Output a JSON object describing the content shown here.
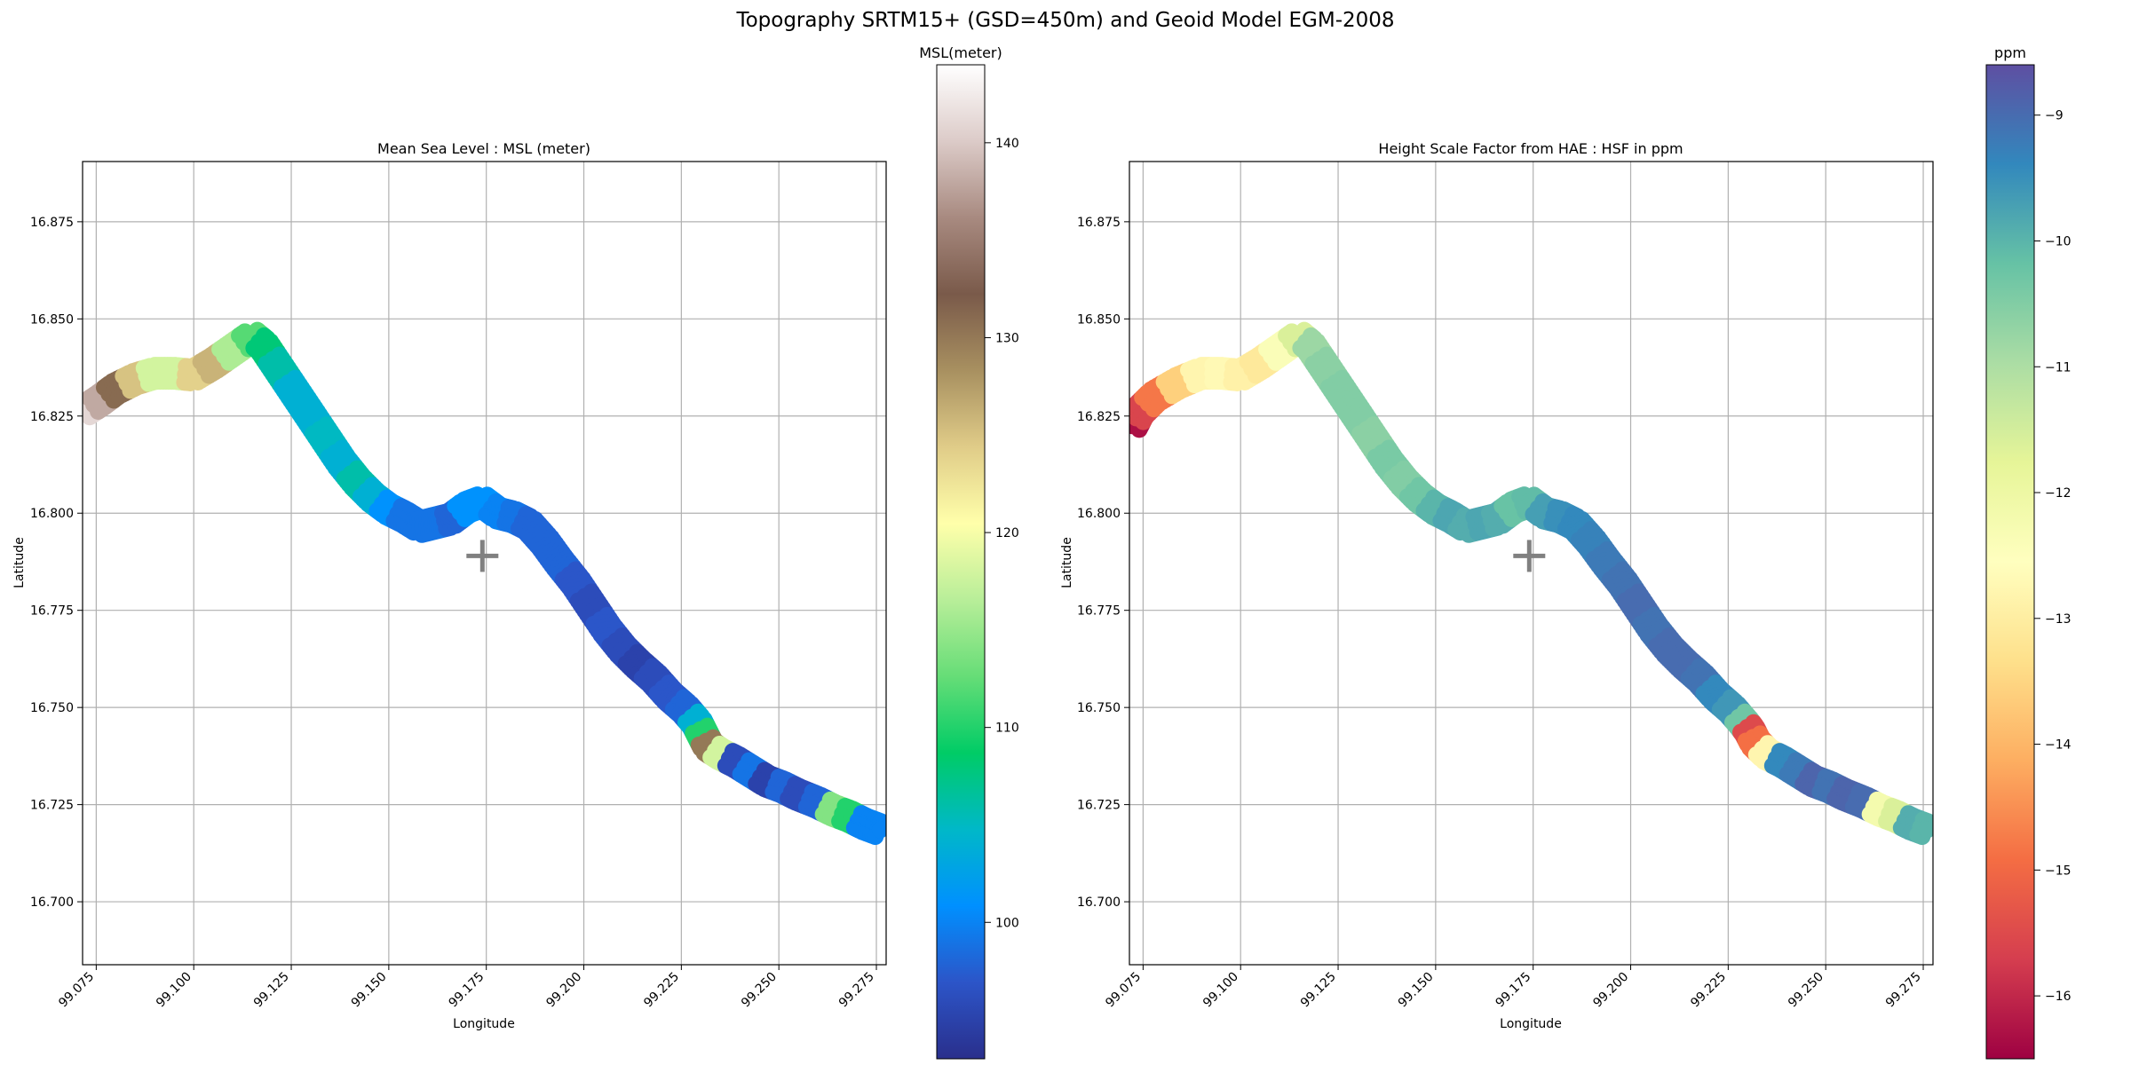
{
  "figure": {
    "suptitle": "Topography SRTM15+ (GSD=450m) and Geoid Model EGM-2008"
  },
  "colors": {
    "grid": "#b0b0b0",
    "marker": "#808080",
    "msl_cmap": [
      "#2a2f8c",
      "#2c55c8",
      "#0090ff",
      "#00b8c8",
      "#00cc66",
      "#66dd77",
      "#b8ee99",
      "#ffffaa",
      "#e0cc88",
      "#a89060",
      "#7a5a4a",
      "#a88a80",
      "#dccbc8",
      "#ffffff"
    ],
    "hsf_cmap": [
      "#9e0142",
      "#d53e4f",
      "#f46d43",
      "#fdae61",
      "#fee08b",
      "#ffffbf",
      "#e6f598",
      "#abdda4",
      "#66c2a5",
      "#3288bd",
      "#5e4fa2"
    ]
  },
  "chart_data": [
    {
      "type": "scatter",
      "title": "Mean Sea Level : MSL (meter)",
      "xlabel": "Longitude",
      "ylabel": "Latitude",
      "xlim": [
        99.0715,
        99.2775
      ],
      "ylim": [
        16.6838,
        16.8905
      ],
      "xticks": [
        "99.075",
        "99.100",
        "99.125",
        "99.150",
        "99.175",
        "99.200",
        "99.225",
        "99.250",
        "99.275"
      ],
      "yticks": [
        "16.700",
        "16.725",
        "16.750",
        "16.775",
        "16.800",
        "16.825",
        "16.850",
        "16.875"
      ],
      "grid": true,
      "colorbar": {
        "title": "MSL(meter)",
        "range": [
          93,
          144
        ],
        "ticks": [
          "100",
          "110",
          "120",
          "130",
          "140"
        ],
        "cmap": "terrain-like"
      },
      "center_marker": {
        "x": 99.174,
        "y": 16.789,
        "symbol": "+"
      },
      "points": [
        [
          99.0722,
          16.8265,
          141
        ],
        [
          99.076,
          16.829,
          138
        ],
        [
          99.08,
          16.832,
          131
        ],
        [
          99.085,
          16.8345,
          125
        ],
        [
          99.09,
          16.836,
          118
        ],
        [
          99.095,
          16.836,
          118
        ],
        [
          99.1,
          16.8355,
          124
        ],
        [
          99.105,
          16.8385,
          126
        ],
        [
          99.11,
          16.842,
          116
        ],
        [
          99.115,
          16.8455,
          112
        ],
        [
          99.118,
          16.843,
          108
        ],
        [
          99.122,
          16.837,
          106
        ],
        [
          99.126,
          16.831,
          104
        ],
        [
          99.13,
          16.825,
          104
        ],
        [
          99.134,
          16.819,
          105
        ],
        [
          99.138,
          16.813,
          104
        ],
        [
          99.142,
          16.808,
          106
        ],
        [
          99.146,
          16.804,
          104
        ],
        [
          99.15,
          16.801,
          101
        ],
        [
          99.154,
          16.799,
          99
        ],
        [
          99.158,
          16.7965,
          99
        ],
        [
          99.162,
          16.7975,
          99
        ],
        [
          99.166,
          16.7985,
          98
        ],
        [
          99.17,
          16.8015,
          101
        ],
        [
          99.174,
          16.803,
          101
        ],
        [
          99.178,
          16.8,
          100
        ],
        [
          99.182,
          16.799,
          99
        ],
        [
          99.186,
          16.797,
          98
        ],
        [
          99.19,
          16.7925,
          98
        ],
        [
          99.194,
          16.787,
          98
        ],
        [
          99.198,
          16.782,
          97
        ],
        [
          99.202,
          16.776,
          96
        ],
        [
          99.206,
          16.77,
          97
        ],
        [
          99.21,
          16.765,
          96
        ],
        [
          99.214,
          16.761,
          95
        ],
        [
          99.218,
          16.7575,
          96
        ],
        [
          99.222,
          16.753,
          97
        ],
        [
          99.226,
          16.7495,
          98
        ],
        [
          99.229,
          16.746,
          104
        ],
        [
          99.2305,
          16.743,
          110
        ],
        [
          99.232,
          16.74,
          130
        ],
        [
          99.235,
          16.738,
          118
        ],
        [
          99.239,
          16.736,
          96
        ],
        [
          99.243,
          16.7335,
          99
        ],
        [
          99.247,
          16.731,
          95
        ],
        [
          99.251,
          16.7295,
          98
        ],
        [
          99.255,
          16.7275,
          96
        ],
        [
          99.26,
          16.7255,
          98
        ],
        [
          99.264,
          16.7235,
          114
        ],
        [
          99.268,
          16.722,
          110
        ],
        [
          99.272,
          16.72,
          100
        ],
        [
          99.276,
          16.7185,
          100
        ]
      ]
    },
    {
      "type": "scatter",
      "title": "Height Scale Factor from HAE : HSF in ppm",
      "xlabel": "Longitude",
      "ylabel": "Latitude",
      "xlim": [
        99.0715,
        99.2775
      ],
      "ylim": [
        16.6838,
        16.8905
      ],
      "xticks": [
        "99.075",
        "99.100",
        "99.125",
        "99.150",
        "99.175",
        "99.200",
        "99.225",
        "99.250",
        "99.275"
      ],
      "yticks": [
        "16.700",
        "16.725",
        "16.750",
        "16.775",
        "16.800",
        "16.825",
        "16.850",
        "16.875"
      ],
      "grid": true,
      "colorbar": {
        "title": "ppm",
        "range": [
          -16.5,
          -8.6
        ],
        "ticks": [
          "−9",
          "−10",
          "−11",
          "−12",
          "−13",
          "−14",
          "−15",
          "−16"
        ],
        "cmap": "Spectral"
      },
      "center_marker": {
        "x": 99.174,
        "y": 16.789,
        "symbol": "+"
      },
      "points": [
        [
          99.0722,
          16.8225,
          -16.3
        ],
        [
          99.074,
          16.826,
          -15.6
        ],
        [
          99.078,
          16.83,
          -14.8
        ],
        [
          99.084,
          16.8335,
          -13.6
        ],
        [
          99.09,
          16.836,
          -12.8
        ],
        [
          99.095,
          16.836,
          -12.7
        ],
        [
          99.1,
          16.8355,
          -12.9
        ],
        [
          99.105,
          16.8385,
          -13.1
        ],
        [
          99.11,
          16.842,
          -12.4
        ],
        [
          99.115,
          16.8455,
          -11.6
        ],
        [
          99.118,
          16.843,
          -10.8
        ],
        [
          99.122,
          16.837,
          -10.6
        ],
        [
          99.126,
          16.831,
          -10.5
        ],
        [
          99.13,
          16.825,
          -10.5
        ],
        [
          99.134,
          16.819,
          -10.6
        ],
        [
          99.138,
          16.813,
          -10.4
        ],
        [
          99.142,
          16.808,
          -10.5
        ],
        [
          99.146,
          16.804,
          -10.3
        ],
        [
          99.15,
          16.801,
          -10.0
        ],
        [
          99.154,
          16.799,
          -9.8
        ],
        [
          99.158,
          16.7965,
          -9.9
        ],
        [
          99.162,
          16.7975,
          -9.8
        ],
        [
          99.166,
          16.7985,
          -9.9
        ],
        [
          99.17,
          16.8015,
          -10.2
        ],
        [
          99.174,
          16.803,
          -10.1
        ],
        [
          99.178,
          16.8,
          -9.7
        ],
        [
          99.182,
          16.799,
          -9.5
        ],
        [
          99.186,
          16.797,
          -9.4
        ],
        [
          99.19,
          16.7925,
          -9.3
        ],
        [
          99.194,
          16.787,
          -9.2
        ],
        [
          99.198,
          16.782,
          -9.1
        ],
        [
          99.202,
          16.776,
          -9.0
        ],
        [
          99.206,
          16.77,
          -9.1
        ],
        [
          99.21,
          16.765,
          -9.0
        ],
        [
          99.214,
          16.761,
          -9.0
        ],
        [
          99.218,
          16.7575,
          -9.1
        ],
        [
          99.222,
          16.753,
          -9.4
        ],
        [
          99.226,
          16.7495,
          -9.6
        ],
        [
          99.229,
          16.746,
          -10.3
        ],
        [
          99.2305,
          16.744,
          -15.5
        ],
        [
          99.232,
          16.741,
          -14.9
        ],
        [
          99.235,
          16.738,
          -12.8
        ],
        [
          99.239,
          16.736,
          -9.4
        ],
        [
          99.243,
          16.7335,
          -9.2
        ],
        [
          99.247,
          16.731,
          -8.9
        ],
        [
          99.251,
          16.7295,
          -9.1
        ],
        [
          99.255,
          16.7275,
          -8.9
        ],
        [
          99.26,
          16.7255,
          -9.0
        ],
        [
          99.264,
          16.7235,
          -12.2
        ],
        [
          99.268,
          16.722,
          -11.6
        ],
        [
          99.272,
          16.72,
          -9.9
        ],
        [
          99.276,
          16.7185,
          -10.0
        ]
      ]
    }
  ]
}
